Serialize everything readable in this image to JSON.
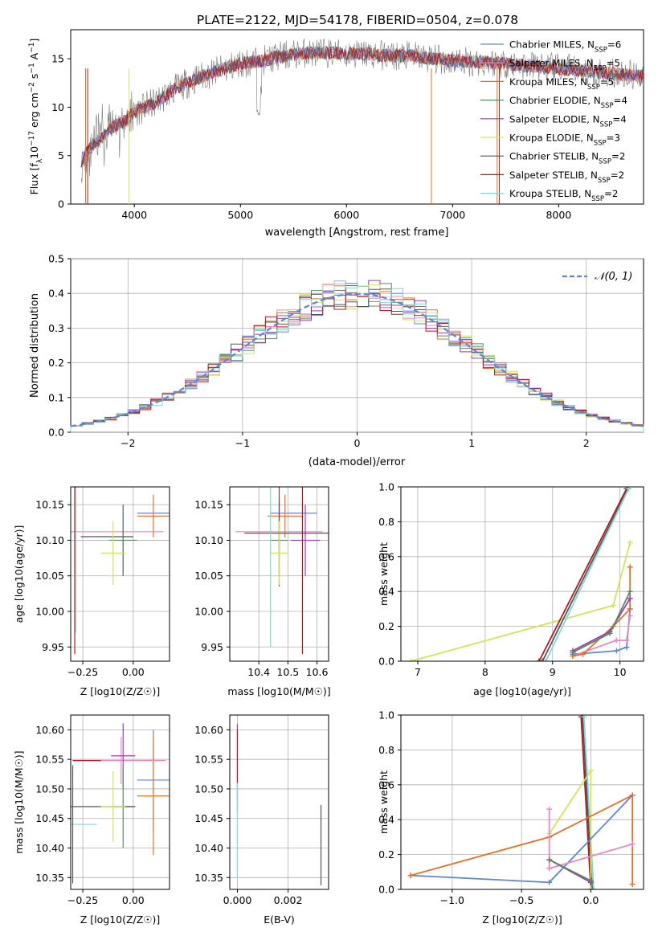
{
  "figure": {
    "title": "PLATE=2122, MJD=54178, FIBERID=0504, z=0.078"
  },
  "colors": {
    "chabrier_miles": "#5f86d8",
    "salpeter_miles": "#e889c4",
    "kroupa_miles": "#e0712a",
    "chabrier_elodie": "#5a8a65",
    "salpeter_elodie": "#9a3eb3",
    "kroupa_elodie": "#cfe65a",
    "chabrier_stelib": "#555555",
    "salpeter_stelib": "#b5171e",
    "kroupa_stelib": "#7fd8d6",
    "gaussian": "#5f86d8"
  },
  "chart_data": [
    {
      "id": "spectrum",
      "type": "line",
      "title": "PLATE=2122, MJD=54178, FIBERID=0504, z=0.078",
      "xlabel": "wavelength [Angstrom, rest frame]",
      "ylabel": "Flux [f_λ10^-17 erg cm^-2 s^-1 A^-1]",
      "xlim": [
        3400,
        8800
      ],
      "ylim": [
        0,
        18
      ],
      "xticks": [
        4000,
        5000,
        6000,
        7000,
        8000
      ],
      "yticks": [
        0,
        5,
        10,
        15
      ],
      "legend_position": "top-right",
      "data_line": {
        "x": [
          3500,
          3600,
          3700,
          3800,
          3900,
          4000,
          4200,
          4400,
          4600,
          4800,
          5000,
          5200,
          5400,
          5600,
          5800,
          6000,
          6200,
          6400,
          6600,
          6800,
          7000,
          7200,
          7400,
          7600,
          7800,
          8000,
          8200,
          8400,
          8600,
          8800
        ],
        "y": [
          4.5,
          6.0,
          7.0,
          8.0,
          8.5,
          9.5,
          10.5,
          12.0,
          13.0,
          13.8,
          14.5,
          14.8,
          15.3,
          15.6,
          15.6,
          15.5,
          15.5,
          15.3,
          15.3,
          15.0,
          14.8,
          14.7,
          14.6,
          14.4,
          14.2,
          14.0,
          13.8,
          13.6,
          13.4,
          13.2
        ]
      },
      "series": [
        {
          "name": "Chabrier MILES",
          "nssp": "6",
          "color_key": "chabrier_miles"
        },
        {
          "name": "Salpeter MILES",
          "nssp": "5",
          "color_key": "salpeter_miles"
        },
        {
          "name": "Kroupa MILES",
          "nssp": "5",
          "color_key": "kroupa_miles"
        },
        {
          "name": "Chabrier ELODIE",
          "nssp": "4",
          "color_key": "chabrier_elodie"
        },
        {
          "name": "Salpeter ELODIE",
          "nssp": "4",
          "color_key": "salpeter_elodie"
        },
        {
          "name": "Kroupa ELODIE",
          "nssp": "3",
          "color_key": "kroupa_elodie"
        },
        {
          "name": "Chabrier STELIB",
          "nssp": "2",
          "color_key": "chabrier_stelib"
        },
        {
          "name": "Salpeter STELIB",
          "nssp": "2",
          "color_key": "salpeter_stelib"
        },
        {
          "name": "Kroupa STELIB",
          "nssp": "2",
          "color_key": "kroupa_stelib"
        }
      ]
    },
    {
      "id": "residuals",
      "type": "histogram",
      "xlabel": "(data-model)/error",
      "ylabel": "Normed distribution",
      "xlim": [
        -2.5,
        2.5
      ],
      "ylim": [
        0,
        0.5
      ],
      "xticks": [
        -2,
        -1,
        0,
        1,
        2
      ],
      "yticks": [
        0.0,
        0.1,
        0.2,
        0.3,
        0.4,
        0.5
      ],
      "legend": "𝒩(0, 1)",
      "bin_width": 0.1,
      "bin_start": -2.5
    },
    {
      "id": "age_vs_Z",
      "type": "errorbar",
      "xlabel": "Z [log10(Z/Z☉)]",
      "ylabel": "age  [log10(age/yr)]",
      "xlim": [
        -0.31,
        0.18
      ],
      "ylim": [
        9.93,
        10.175
      ],
      "xticks": [
        -0.25,
        0.0
      ],
      "xticklabels": [
        "−0.25",
        "0.00"
      ],
      "yticks": [
        9.95,
        10.0,
        10.05,
        10.1,
        10.15
      ],
      "yticklabels": [
        "9.95",
        "10.00",
        "10.05",
        "10.10",
        "10.15"
      ],
      "points": [
        {
          "color_key": "chabrier_miles",
          "x": 0.1,
          "y": 10.138,
          "xerr": 0.08,
          "yerr": 0.0
        },
        {
          "color_key": "kroupa_miles",
          "x": 0.1,
          "y": 10.134,
          "xerr": 0.08,
          "yerr": 0.03
        },
        {
          "color_key": "salpeter_miles",
          "x": -0.15,
          "y": 10.112,
          "xerr": 0.3,
          "yerr": 0.0
        },
        {
          "color_key": "salpeter_elodie",
          "x": -0.05,
          "y": 10.1,
          "xerr": 0.0,
          "yerr": 0.05
        },
        {
          "color_key": "chabrier_elodie",
          "x": -0.05,
          "y": 10.1,
          "xerr": 0.07,
          "yerr": 0.05
        },
        {
          "color_key": "chabrier_stelib",
          "x": -0.13,
          "y": 10.105,
          "xerr": 0.13,
          "yerr": 0.0
        },
        {
          "color_key": "kroupa_elodie",
          "x": -0.1,
          "y": 10.082,
          "xerr": 0.06,
          "yerr": 0.045
        },
        {
          "color_key": "salpeter_stelib",
          "x": -0.29,
          "y": 10.11,
          "xerr": 0.0,
          "yerr": 0.17
        },
        {
          "color_key": "kroupa_stelib",
          "x": -0.285,
          "y": 10.11,
          "xerr": 0.0,
          "yerr": 0.14
        }
      ]
    },
    {
      "id": "age_vs_mass",
      "type": "errorbar",
      "xlabel": "mass [log10(M/M☉)]",
      "ylabel": "",
      "xlim": [
        10.3,
        10.64
      ],
      "ylim": [
        9.93,
        10.175
      ],
      "xticks": [
        10.4,
        10.5,
        10.6
      ],
      "yticks": [
        9.95,
        10.0,
        10.05,
        10.1,
        10.15
      ],
      "yticklabels": [
        "9.95",
        "10.00",
        "10.05",
        "10.10",
        "10.15"
      ],
      "points": [
        {
          "color_key": "chabrier_miles",
          "x": 10.52,
          "y": 10.138,
          "xerr": 0.08,
          "yerr": 0.0
        },
        {
          "color_key": "kroupa_miles",
          "x": 10.49,
          "y": 10.134,
          "xerr": 0.06,
          "yerr": 0.03
        },
        {
          "color_key": "salpeter_miles",
          "x": 10.47,
          "y": 10.112,
          "xerr": 0.15,
          "yerr": 0.045
        },
        {
          "color_key": "salpeter_elodie",
          "x": 10.56,
          "y": 10.1,
          "xerr": 0.05,
          "yerr": 0.05
        },
        {
          "color_key": "chabrier_elodie",
          "x": 10.47,
          "y": 10.1,
          "xerr": 0.03,
          "yerr": 0.05
        },
        {
          "color_key": "chabrier_stelib",
          "x": 10.47,
          "y": 10.105,
          "xerr": 0.0,
          "yerr": 0.07
        },
        {
          "color_key": "kroupa_elodie",
          "x": 10.47,
          "y": 10.082,
          "xerr": 0.03,
          "yerr": 0.045
        },
        {
          "color_key": "salpeter_stelib",
          "x": 10.55,
          "y": 10.11,
          "xerr": 0.2,
          "yerr": 0.17
        },
        {
          "color_key": "kroupa_stelib",
          "x": 10.44,
          "y": 10.11,
          "xerr": 0.0,
          "yerr": 0.16
        }
      ]
    },
    {
      "id": "weight_vs_age",
      "type": "line",
      "xlabel": "age  [log10(age/yr)]",
      "ylabel": "mass weight",
      "xlim": [
        6.75,
        10.35
      ],
      "ylim": [
        0,
        1.0
      ],
      "xticks": [
        7,
        8,
        9,
        10
      ],
      "yticks": [
        0.0,
        0.2,
        0.4,
        0.6,
        0.8,
        1.0
      ],
      "series": [
        {
          "color_key": "kroupa_elodie",
          "x": [
            6.9,
            9.9,
            10.15
          ],
          "y": [
            0.0,
            0.32,
            0.68
          ]
        },
        {
          "color_key": "salpeter_stelib",
          "x": [
            8.8,
            10.1
          ],
          "y": [
            0.0,
            0.99
          ]
        },
        {
          "color_key": "chabrier_stelib",
          "x": [
            8.85,
            10.12
          ],
          "y": [
            0.0,
            0.99
          ]
        },
        {
          "color_key": "kroupa_stelib",
          "x": [
            8.9,
            10.13
          ],
          "y": [
            0.0,
            0.99
          ]
        },
        {
          "color_key": "chabrier_miles",
          "x": [
            9.3,
            9.95,
            10.1,
            10.15
          ],
          "y": [
            0.04,
            0.06,
            0.08,
            0.3
          ]
        },
        {
          "color_key": "salpeter_miles",
          "x": [
            9.3,
            9.95,
            10.1,
            10.15
          ],
          "y": [
            0.03,
            0.12,
            0.12,
            0.26
          ]
        },
        {
          "color_key": "kroupa_miles",
          "x": [
            9.3,
            9.45,
            9.9,
            10.15,
            10.15
          ],
          "y": [
            0.03,
            0.04,
            0.2,
            0.3,
            0.54
          ]
        },
        {
          "color_key": "salpeter_elodie",
          "x": [
            9.3,
            9.85,
            10.15
          ],
          "y": [
            0.06,
            0.17,
            0.36
          ]
        },
        {
          "color_key": "chabrier_elodie",
          "x": [
            9.3,
            9.85,
            10.15
          ],
          "y": [
            0.05,
            0.16,
            0.4
          ]
        }
      ]
    },
    {
      "id": "mass_vs_Z",
      "type": "errorbar",
      "xlabel": "Z [log10(Z/Z☉)]",
      "ylabel": "mass [log10(M/M☉)]",
      "xlim": [
        -0.31,
        0.18
      ],
      "ylim": [
        10.33,
        10.625
      ],
      "xticks": [
        -0.25,
        0.0
      ],
      "xticklabels": [
        "−0.25",
        "0.00"
      ],
      "yticks": [
        10.35,
        10.4,
        10.45,
        10.5,
        10.55,
        10.6
      ],
      "yticklabels": [
        "10.35",
        "10.40",
        "10.45",
        "10.50",
        "10.55",
        "10.60"
      ],
      "points": [
        {
          "color_key": "chabrier_miles",
          "x": 0.1,
          "y": 10.515,
          "xerr": 0.08,
          "yerr": 0.085
        },
        {
          "color_key": "kroupa_miles",
          "x": 0.1,
          "y": 10.488,
          "xerr": 0.08,
          "yerr": 0.1
        },
        {
          "color_key": "salpeter_miles",
          "x": -0.06,
          "y": 10.548,
          "xerr": 0.22,
          "yerr": 0.04
        },
        {
          "color_key": "salpeter_elodie",
          "x": -0.05,
          "y": 10.556,
          "xerr": 0.06,
          "yerr": 0.055
        },
        {
          "color_key": "chabrier_elodie",
          "x": -0.05,
          "y": 10.47,
          "xerr": 0.06,
          "yerr": 0.07
        },
        {
          "color_key": "chabrier_stelib",
          "x": -0.15,
          "y": 10.47,
          "xerr": 0.16,
          "yerr": 0.0
        },
        {
          "color_key": "kroupa_elodie",
          "x": -0.1,
          "y": 10.47,
          "xerr": 0.06,
          "yerr": 0.06
        },
        {
          "color_key": "salpeter_stelib",
          "x": -0.23,
          "y": 10.548,
          "xerr": 0.07,
          "yerr": 0.0
        },
        {
          "color_key": "kroupa_stelib",
          "x": -0.25,
          "y": 10.44,
          "xerr": 0.07,
          "yerr": 0.0
        },
        {
          "color_key": "chabrier_stelib",
          "x": -0.3,
          "y": 10.44,
          "xerr": 0.0,
          "yerr": 0.1
        }
      ]
    },
    {
      "id": "mass_vs_ebv",
      "type": "errorbar",
      "xlabel": "E(B-V)",
      "ylabel": "",
      "xlim": [
        -0.0003,
        0.0036
      ],
      "ylim": [
        10.33,
        10.625
      ],
      "xticks": [
        0.0,
        0.002
      ],
      "xticklabels": [
        "0.000",
        "0.002"
      ],
      "yticks": [
        10.35,
        10.4,
        10.45,
        10.5,
        10.55,
        10.6
      ],
      "yticklabels": [
        "10.35",
        "10.40",
        "10.45",
        "10.50",
        "10.55",
        "10.60"
      ],
      "points": [
        {
          "color_key": "salpeter_elodie",
          "x": 0.0,
          "y": 10.56,
          "xerr": 0.0,
          "yerr": 0.05
        },
        {
          "color_key": "salpeter_stelib",
          "x": 0.0,
          "y": 10.53,
          "xerr": 0.0,
          "yerr": 0.07
        },
        {
          "color_key": "kroupa_stelib",
          "x": 0.0,
          "y": 10.43,
          "xerr": 0.0,
          "yerr": 0.08
        },
        {
          "color_key": "chabrier_stelib",
          "x": 0.0033,
          "y": 10.405,
          "xerr": 0.0,
          "yerr": 0.068
        }
      ]
    },
    {
      "id": "weight_vs_Z",
      "type": "line",
      "xlabel": "Z [log10(Z/Z☉)]",
      "ylabel": "mass weight",
      "xlim": [
        -1.37,
        0.38
      ],
      "ylim": [
        0,
        1.0
      ],
      "xticks": [
        -1.0,
        -0.5,
        0.0
      ],
      "xticklabels": [
        "−1.0",
        "−0.5",
        "0.0"
      ],
      "yticks": [
        0.0,
        0.2,
        0.4,
        0.6,
        0.8,
        1.0
      ],
      "series": [
        {
          "color_key": "salpeter_stelib",
          "x": [
            -0.07,
            0.0
          ],
          "y": [
            0.99,
            0.0
          ]
        },
        {
          "color_key": "chabrier_stelib",
          "x": [
            -0.06,
            0.01
          ],
          "y": [
            0.99,
            0.0
          ]
        },
        {
          "color_key": "kroupa_stelib",
          "x": [
            -0.05,
            0.02
          ],
          "y": [
            0.99,
            0.0
          ]
        },
        {
          "color_key": "kroupa_elodie",
          "x": [
            -0.3,
            0.0,
            0.0
          ],
          "y": [
            0.32,
            0.68,
            0.0
          ]
        },
        {
          "color_key": "chabrier_miles",
          "x": [
            -1.3,
            -0.3,
            0.3,
            0.3
          ],
          "y": [
            0.08,
            0.04,
            0.54,
            0.54
          ]
        },
        {
          "color_key": "kroupa_miles",
          "x": [
            -1.3,
            -0.3,
            0.3,
            0.3
          ],
          "y": [
            0.08,
            0.3,
            0.54,
            0.03
          ]
        },
        {
          "color_key": "salpeter_miles",
          "x": [
            -0.3,
            -0.3,
            0.3
          ],
          "y": [
            0.46,
            0.12,
            0.26
          ]
        },
        {
          "color_key": "salpeter_elodie",
          "x": [
            -0.3,
            0.0
          ],
          "y": [
            0.17,
            0.04
          ]
        },
        {
          "color_key": "chabrier_elodie",
          "x": [
            -0.3,
            0.0
          ],
          "y": [
            0.17,
            0.05
          ]
        }
      ]
    }
  ]
}
